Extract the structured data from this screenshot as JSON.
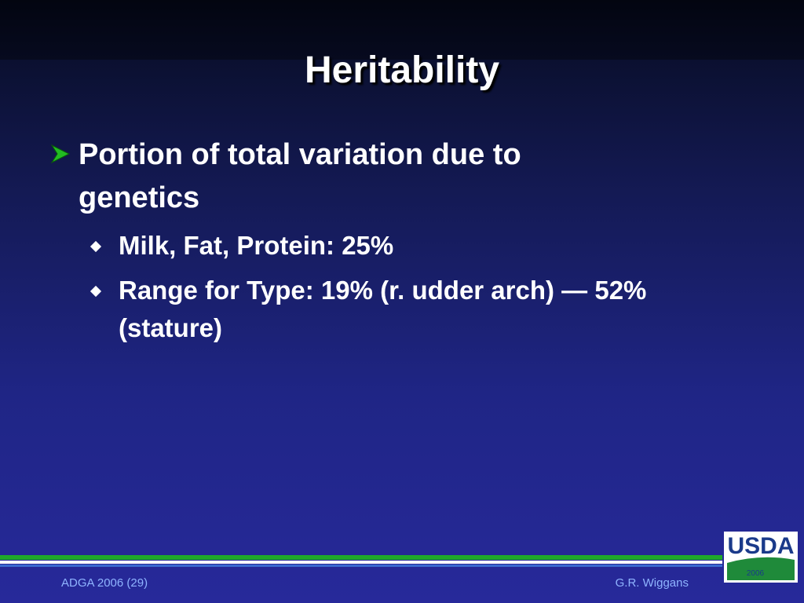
{
  "slide": {
    "title": "Heritability",
    "bullets": [
      {
        "text": "Portion of total variation due to genetics",
        "sub_bullets": [
          "Milk, Fat, Protein: 25%",
          "Range for Type: 19% (r. udder arch) — 52% (stature)"
        ]
      }
    ],
    "footer_left": "ADGA 2006 (29)",
    "footer_right": "G.R. Wiggans",
    "logo": {
      "name": "USDA",
      "year": "2006"
    }
  }
}
